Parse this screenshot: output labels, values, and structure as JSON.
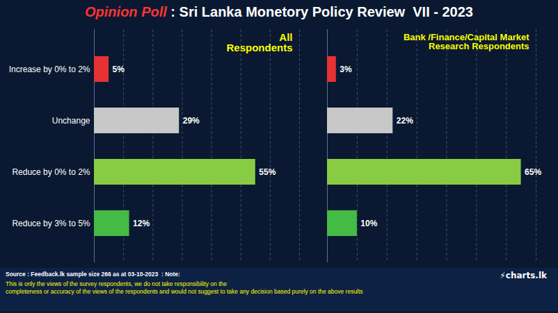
{
  "title": "Opinion Poll : Sri Lanka Monetory Policy Review  VII - 2023",
  "annotations": [
    "Source : Feedback.lk sample size 266 as at 03-10-2023  : Note:",
    "This is only the views of the survey respondents, we do not take responsibility on the\ncompleteness or accuracy of the views  of the respondents and  would not suggest to take any decision based purely on the above results",
    "⚡charts.lk"
  ],
  "chart_data": [
    {
      "type": "bar",
      "orientation": "horizontal",
      "annotations": [
        "All\nRespondents"
      ],
      "categories": [
        "Increase by 0% to 2%",
        "Unchange",
        "Reduce by 0% to 2%",
        "Reduce by 3% to 5%"
      ],
      "values": [
        5,
        29,
        55,
        12
      ],
      "value_labels": [
        "5%",
        "29%",
        "55%",
        "12%"
      ],
      "colors": [
        "#e63232",
        "#c8c8c8",
        "#88cc44",
        "#44bb44"
      ],
      "xlim": [
        0,
        70
      ],
      "xticks": [
        0,
        10,
        20,
        30,
        40,
        50,
        60,
        70
      ],
      "grid": true,
      "data_labels": true,
      "tick_labels": "y"
    },
    {
      "type": "bar",
      "orientation": "horizontal",
      "annotations": [
        "Bank /Finance/Capital Market\nResearch Respondents"
      ],
      "categories": [
        "Increase by 0% to 2%",
        "Unchange",
        "Reduce by 0% to 2%",
        "Reduce by 3% to 5%"
      ],
      "values": [
        3,
        22,
        65,
        10
      ],
      "value_labels": [
        "3%",
        "22%",
        "65%",
        "10%"
      ],
      "colors": [
        "#e63232",
        "#c8c8c8",
        "#88cc44",
        "#44bb44"
      ],
      "xlim": [
        0,
        70
      ],
      "xticks": [
        0,
        10,
        20,
        30,
        40,
        50,
        60,
        70
      ],
      "grid": true,
      "data_labels": true,
      "tick_labels": false
    }
  ]
}
